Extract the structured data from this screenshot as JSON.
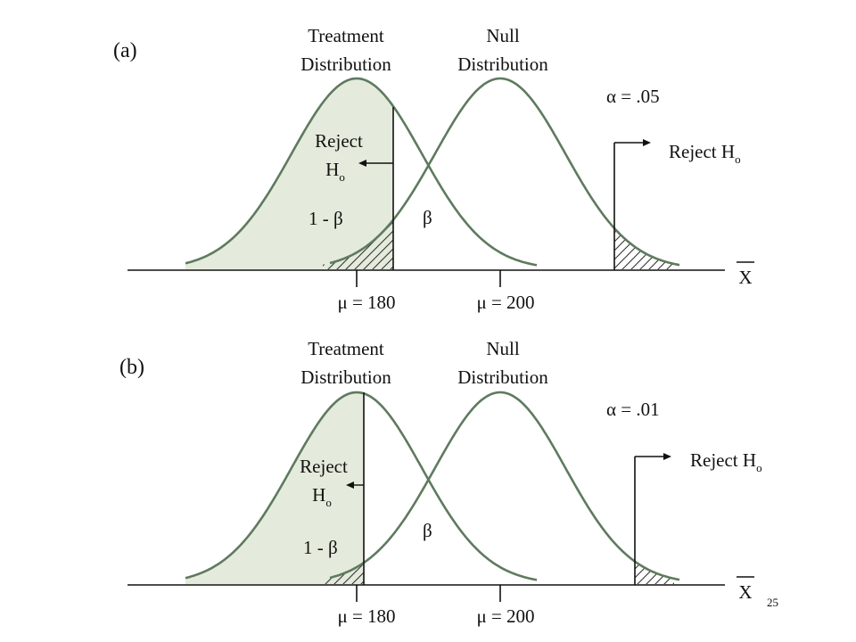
{
  "colors": {
    "curve": "#5f7a5f",
    "power_fill": "#e4ebdc",
    "line": "#111111",
    "hatch": "#333333"
  },
  "panels": [
    {
      "label": "(a)",
      "treatment_title": [
        "Treatment",
        "Distribution"
      ],
      "null_title": [
        "Null",
        "Distribution"
      ],
      "alpha_label": "α = .05",
      "alpha": 0.05,
      "reject_left": [
        "Reject",
        "H",
        "o"
      ],
      "reject_right": [
        "Reject H",
        "o"
      ],
      "power_label": "1 - β",
      "beta_label": "β",
      "axis_label": "X",
      "mu_treatment_label": "μ = 180",
      "mu_null_label": "μ = 200"
    },
    {
      "label": "(b)",
      "treatment_title": [
        "Treatment",
        "Distribution"
      ],
      "null_title": [
        "Null",
        "Distribution"
      ],
      "alpha_label": "α = .01",
      "alpha": 0.01,
      "reject_left": [
        "Reject",
        "H",
        "o"
      ],
      "reject_right": [
        "Reject H",
        "o"
      ],
      "power_label": "1 - β",
      "beta_label": "β",
      "axis_label": "X",
      "mu_treatment_label": "μ = 180",
      "mu_null_label": "μ = 200"
    }
  ],
  "page_number": "25"
}
